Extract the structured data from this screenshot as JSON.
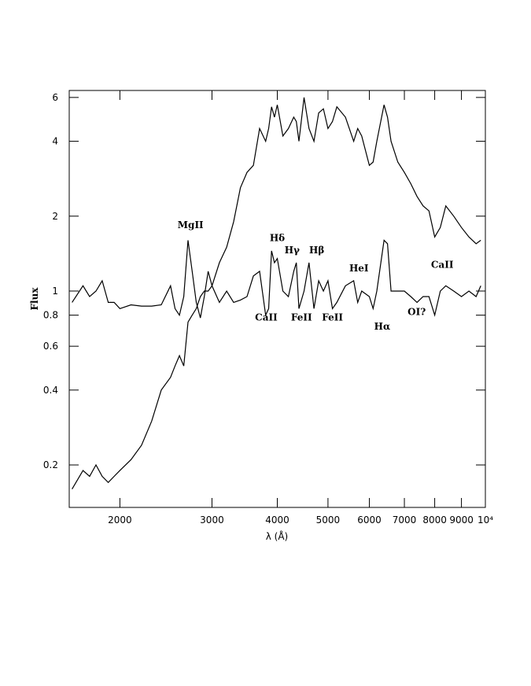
{
  "chart_data": {
    "type": "line",
    "x_label": "λ (Å)",
    "y_label": "Flux",
    "log_x": true,
    "log_y": true,
    "xlim": [
      1600,
      10000
    ],
    "ylim": [
      0.135,
      6.4
    ],
    "xticks": [
      2000,
      3000,
      4000,
      5000,
      6000,
      7000,
      8000,
      9000,
      {
        "value": 10000,
        "label": "10⁴"
      }
    ],
    "yticks": [
      0.2,
      0.4,
      0.6,
      0.8,
      1,
      2,
      4,
      6
    ],
    "x": [
      1620,
      1700,
      1750,
      1800,
      1850,
      1900,
      1950,
      2000,
      2100,
      2200,
      2300,
      2400,
      2500,
      2550,
      2600,
      2650,
      2700,
      2750,
      2800,
      2850,
      2900,
      2950,
      3000,
      3100,
      3200,
      3300,
      3400,
      3500,
      3600,
      3700,
      3800,
      3850,
      3900,
      3950,
      4000,
      4100,
      4200,
      4300,
      4350,
      4400,
      4500,
      4600,
      4700,
      4800,
      4900,
      5000,
      5100,
      5200,
      5400,
      5600,
      5700,
      5800,
      6000,
      6100,
      6200,
      6400,
      6500,
      6600,
      6800,
      7000,
      7200,
      7400,
      7600,
      7800,
      8000,
      8200,
      8400,
      8700,
      9000,
      9300,
      9600,
      9800
    ],
    "series": [
      {
        "color": "#000000",
        "values": [
          0.16,
          0.19,
          0.18,
          0.2,
          0.18,
          0.17,
          0.18,
          0.19,
          0.21,
          0.24,
          0.3,
          0.4,
          0.45,
          0.5,
          0.55,
          0.5,
          0.75,
          0.8,
          0.85,
          0.95,
          1.0,
          1.0,
          1.05,
          1.3,
          1.5,
          1.9,
          2.6,
          3.0,
          3.2,
          4.5,
          4.0,
          4.5,
          5.5,
          5.0,
          5.6,
          4.2,
          4.5,
          5.0,
          4.8,
          4.0,
          6.0,
          4.5,
          4.0,
          5.2,
          5.4,
          4.5,
          4.8,
          5.5,
          5.0,
          4.0,
          4.5,
          4.2,
          3.2,
          3.3,
          4.0,
          5.6,
          5.0,
          4.0,
          3.3,
          3.0,
          2.7,
          2.4,
          2.2,
          2.1,
          1.65,
          1.8,
          2.2,
          2.0,
          1.8,
          1.65,
          1.55,
          1.6
        ]
      },
      {
        "color": "#000000",
        "values": [
          0.9,
          1.05,
          0.95,
          1.0,
          1.1,
          0.9,
          0.9,
          0.85,
          0.88,
          0.87,
          0.87,
          0.88,
          1.05,
          0.85,
          0.8,
          0.95,
          1.6,
          1.2,
          0.9,
          0.78,
          0.95,
          1.2,
          1.05,
          0.9,
          1.0,
          0.9,
          0.92,
          0.95,
          1.15,
          1.2,
          0.8,
          0.85,
          1.45,
          1.3,
          1.35,
          1.0,
          0.95,
          1.2,
          1.3,
          0.85,
          1.0,
          1.3,
          0.85,
          1.1,
          1.0,
          1.1,
          0.85,
          0.9,
          1.05,
          1.1,
          0.9,
          1.0,
          0.95,
          0.85,
          1.0,
          1.6,
          1.55,
          1.0,
          1.0,
          1.0,
          0.95,
          0.9,
          0.95,
          0.95,
          0.8,
          1.0,
          1.05,
          1.0,
          0.95,
          1.0,
          0.95,
          1.05
        ]
      }
    ],
    "annotations": [
      {
        "text": "MgII",
        "x": 2730,
        "y": 1.79
      },
      {
        "text": "Hδ",
        "x": 4000,
        "y": 1.59
      },
      {
        "text": "Hγ",
        "x": 4270,
        "y": 1.42
      },
      {
        "text": "Hβ",
        "x": 4760,
        "y": 1.42
      },
      {
        "text": "HeI",
        "x": 5730,
        "y": 1.2
      },
      {
        "text": "CaII",
        "x": 8270,
        "y": 1.24
      },
      {
        "text": "CaII",
        "x": 3810,
        "y": 0.76
      },
      {
        "text": "FeII",
        "x": 4450,
        "y": 0.76
      },
      {
        "text": "FeII",
        "x": 5100,
        "y": 0.76
      },
      {
        "text": "Hα",
        "x": 6350,
        "y": 0.7
      },
      {
        "text": "OI?",
        "x": 7390,
        "y": 0.8
      }
    ]
  }
}
